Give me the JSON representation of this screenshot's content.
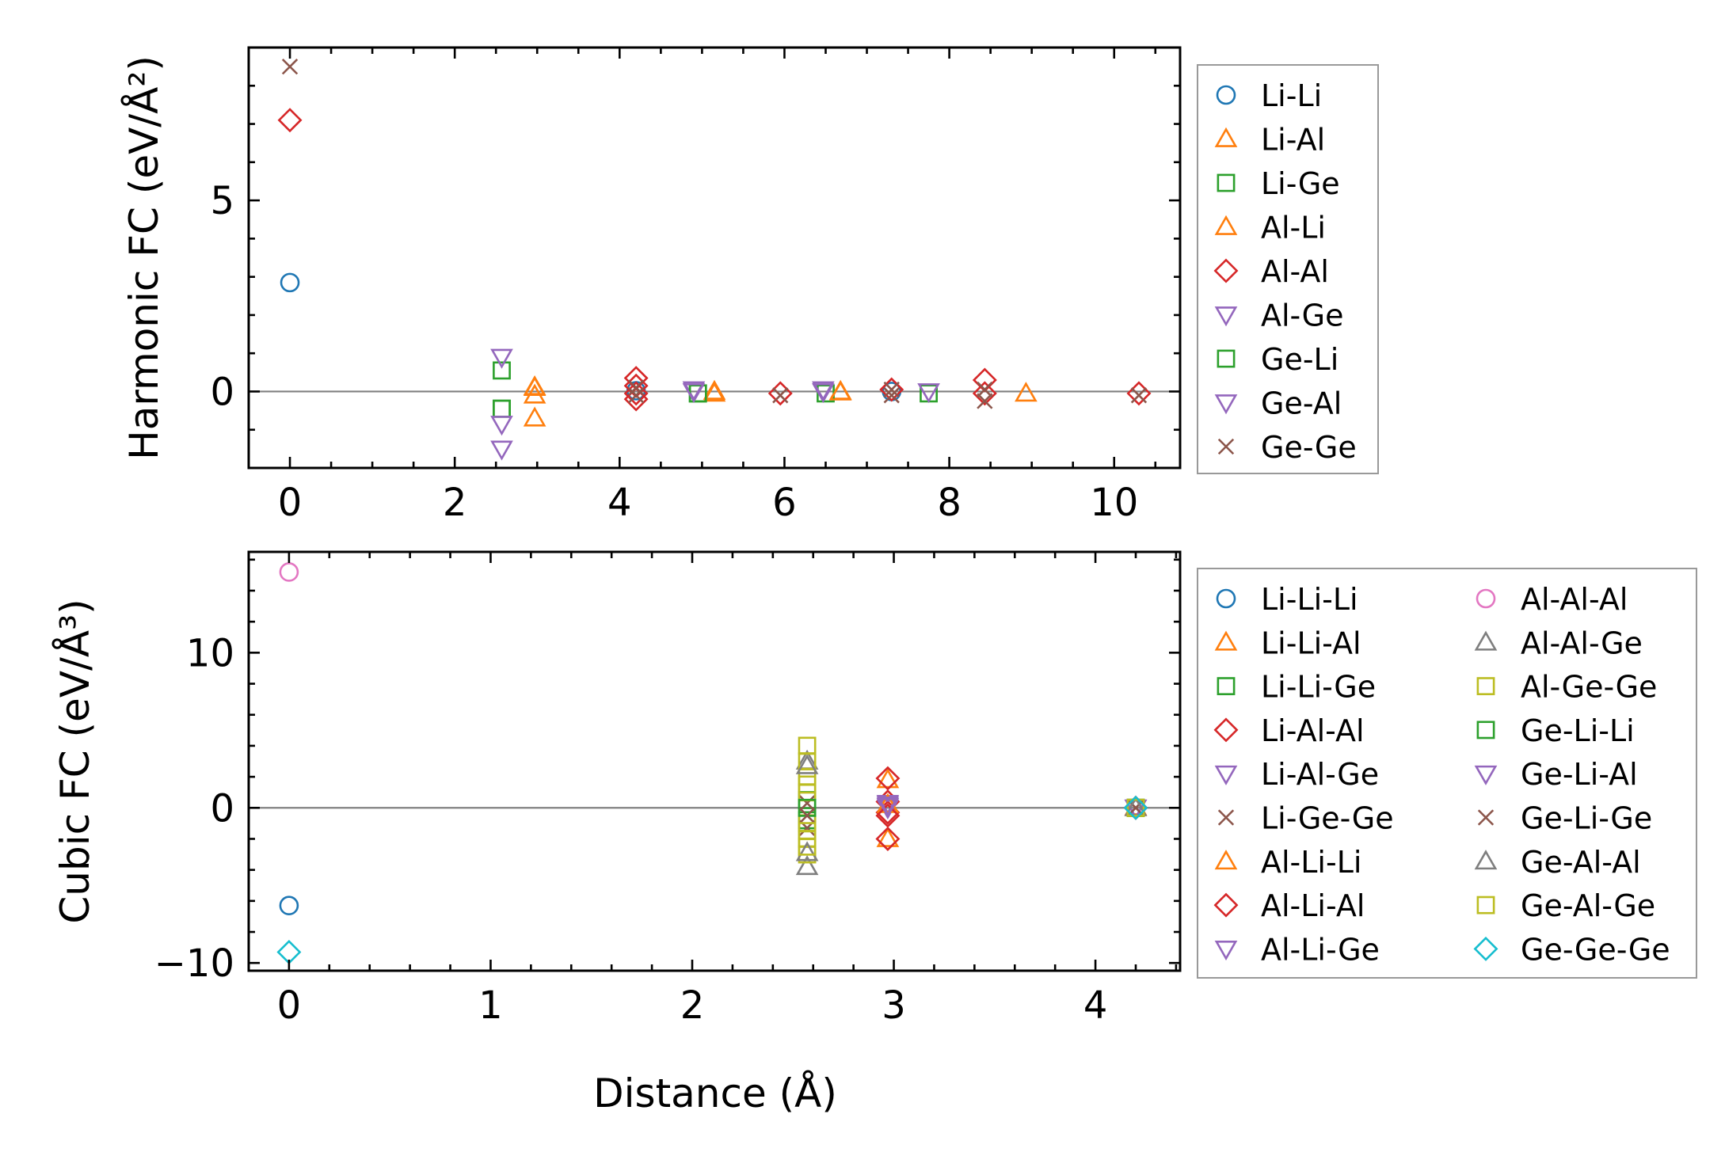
{
  "colors": {
    "blue": "#1f77b4",
    "orange": "#ff7f0e",
    "green": "#2ca02c",
    "red": "#d62728",
    "purple": "#9467bd",
    "brown": "#8c564b",
    "pink": "#e377c2",
    "gray": "#7f7f7f",
    "olive": "#bcbd22",
    "cyan": "#17becf"
  },
  "xlabel": "Distance (Å)",
  "chart_data": [
    {
      "type": "scatter",
      "id": "harmonic",
      "ylabel": "Harmonic FC (eV/Å²)",
      "xlim": [
        -0.5,
        10.8
      ],
      "ylim": [
        -2.0,
        9.0
      ],
      "xticks": [
        0,
        2,
        4,
        6,
        8,
        10
      ],
      "xticklabels": [
        "0",
        "2",
        "4",
        "6",
        "8",
        "10"
      ],
      "yticks": [
        0,
        5
      ],
      "yticklabels": [
        "0",
        "5"
      ],
      "legend_columns": 1,
      "legend_position": "right",
      "series": [
        {
          "name": "Li-Li",
          "marker": "circle",
          "color": "blue",
          "points": [
            [
              0,
              2.85
            ],
            [
              4.2,
              0.02
            ],
            [
              7.3,
              0.0
            ]
          ]
        },
        {
          "name": "Li-Al",
          "marker": "triangle-up",
          "color": "orange",
          "points": [
            [
              2.97,
              0.12
            ],
            [
              2.97,
              -0.1
            ],
            [
              2.97,
              -0.7
            ],
            [
              5.15,
              -0.05
            ],
            [
              6.68,
              0.0
            ],
            [
              8.93,
              -0.05
            ]
          ]
        },
        {
          "name": "Li-Ge",
          "marker": "square",
          "color": "green",
          "points": [
            [
              2.57,
              0.55
            ],
            [
              2.57,
              -0.45
            ],
            [
              4.95,
              -0.05
            ],
            [
              6.5,
              -0.05
            ],
            [
              7.75,
              -0.05
            ]
          ]
        },
        {
          "name": "Al-Li",
          "marker": "triangle-up",
          "color": "orange",
          "points": [
            [
              2.97,
              0.1
            ],
            [
              5.15,
              0.0
            ],
            [
              6.68,
              -0.02
            ]
          ]
        },
        {
          "name": "Al-Al",
          "marker": "diamond",
          "color": "red",
          "points": [
            [
              0,
              7.1
            ],
            [
              4.2,
              0.35
            ],
            [
              4.2,
              0.15
            ],
            [
              4.2,
              -0.05
            ],
            [
              4.2,
              -0.2
            ],
            [
              5.95,
              -0.05
            ],
            [
              7.3,
              0.05
            ],
            [
              8.43,
              0.3
            ],
            [
              8.43,
              -0.05
            ],
            [
              10.3,
              -0.05
            ]
          ]
        },
        {
          "name": "Al-Ge",
          "marker": "triangle-down",
          "color": "purple",
          "points": [
            [
              2.57,
              0.9
            ],
            [
              2.57,
              -1.5
            ],
            [
              4.9,
              0.05
            ],
            [
              6.47,
              0.05
            ],
            [
              7.75,
              0.0
            ]
          ]
        },
        {
          "name": "Ge-Li",
          "marker": "square",
          "color": "green",
          "points": [
            [
              2.57,
              -0.45
            ],
            [
              4.95,
              -0.05
            ]
          ]
        },
        {
          "name": "Ge-Al",
          "marker": "triangle-down",
          "color": "purple",
          "points": [
            [
              2.57,
              -0.85
            ],
            [
              4.9,
              0.0
            ],
            [
              6.47,
              0.0
            ]
          ]
        },
        {
          "name": "Ge-Ge",
          "marker": "x",
          "color": "brown",
          "points": [
            [
              0,
              8.5
            ],
            [
              4.2,
              0.1
            ],
            [
              4.2,
              -0.1
            ],
            [
              5.95,
              -0.1
            ],
            [
              7.3,
              0.05
            ],
            [
              7.3,
              -0.1
            ],
            [
              8.43,
              0.05
            ],
            [
              8.43,
              -0.25
            ],
            [
              10.3,
              -0.1
            ]
          ]
        }
      ]
    },
    {
      "type": "scatter",
      "id": "cubic",
      "ylabel": "Cubic FC (eV/Å³)",
      "xlim": [
        -0.2,
        4.42
      ],
      "ylim": [
        -10.5,
        16.5
      ],
      "xticks": [
        0,
        1,
        2,
        3,
        4
      ],
      "xticklabels": [
        "0",
        "1",
        "2",
        "3",
        "4"
      ],
      "yticks": [
        -10,
        0,
        10
      ],
      "yticklabels": [
        "−10",
        "0",
        "10"
      ],
      "legend_columns": 2,
      "legend_position": "right",
      "series": [
        {
          "name": "Li-Li-Li",
          "marker": "circle",
          "color": "blue",
          "points": [
            [
              0,
              -6.3
            ],
            [
              4.2,
              0.0
            ]
          ]
        },
        {
          "name": "Li-Li-Al",
          "marker": "triangle-up",
          "color": "orange",
          "points": [
            [
              2.97,
              1.8
            ],
            [
              2.97,
              -2.0
            ],
            [
              4.2,
              0.05
            ]
          ]
        },
        {
          "name": "Li-Li-Ge",
          "marker": "square",
          "color": "green",
          "points": [
            [
              2.57,
              0.5
            ],
            [
              2.57,
              -0.8
            ],
            [
              4.2,
              0.0
            ]
          ]
        },
        {
          "name": "Li-Al-Al",
          "marker": "diamond",
          "color": "red",
          "points": [
            [
              2.97,
              1.9
            ],
            [
              2.97,
              0.4
            ],
            [
              2.97,
              -0.3
            ],
            [
              2.97,
              -2.0
            ],
            [
              4.2,
              0.0
            ]
          ]
        },
        {
          "name": "Li-Al-Ge",
          "marker": "triangle-down",
          "color": "purple",
          "points": [
            [
              2.97,
              0.3
            ],
            [
              2.97,
              0.0
            ],
            [
              4.2,
              0.0
            ]
          ]
        },
        {
          "name": "Li-Ge-Ge",
          "marker": "x",
          "color": "brown",
          "points": [
            [
              2.57,
              0.3
            ],
            [
              2.57,
              -1.3
            ],
            [
              4.2,
              0.0
            ]
          ]
        },
        {
          "name": "Al-Li-Li",
          "marker": "triangle-up",
          "color": "orange",
          "points": [
            [
              2.97,
              0.2
            ],
            [
              4.2,
              0.0
            ]
          ]
        },
        {
          "name": "Al-Li-Al",
          "marker": "diamond",
          "color": "red",
          "points": [
            [
              2.97,
              -0.5
            ],
            [
              4.2,
              0.0
            ]
          ]
        },
        {
          "name": "Al-Li-Ge",
          "marker": "triangle-down",
          "color": "purple",
          "points": [
            [
              2.97,
              0.1
            ],
            [
              4.2,
              0.0
            ]
          ]
        },
        {
          "name": "Al-Al-Al",
          "marker": "circle",
          "color": "pink",
          "points": [
            [
              0,
              15.2
            ],
            [
              4.2,
              0.0
            ]
          ]
        },
        {
          "name": "Al-Al-Ge",
          "marker": "triangle-up",
          "color": "gray",
          "points": [
            [
              2.57,
              3.0
            ],
            [
              2.57,
              -3.8
            ],
            [
              4.2,
              0.0
            ]
          ]
        },
        {
          "name": "Al-Ge-Ge",
          "marker": "square",
          "color": "olive",
          "points": [
            [
              2.57,
              4.0
            ],
            [
              2.57,
              3.0
            ],
            [
              2.57,
              2.0
            ],
            [
              2.57,
              1.0
            ],
            [
              2.57,
              -1.0
            ],
            [
              2.57,
              -2.0
            ],
            [
              2.57,
              -3.0
            ],
            [
              4.2,
              0.0
            ]
          ]
        },
        {
          "name": "Ge-Li-Li",
          "marker": "square",
          "color": "green",
          "points": [
            [
              2.57,
              0.0
            ],
            [
              4.2,
              0.0
            ]
          ]
        },
        {
          "name": "Ge-Li-Al",
          "marker": "triangle-down",
          "color": "purple",
          "points": [
            [
              2.97,
              0.2
            ],
            [
              4.2,
              0.0
            ]
          ]
        },
        {
          "name": "Ge-Li-Ge",
          "marker": "x",
          "color": "brown",
          "points": [
            [
              2.57,
              -0.5
            ],
            [
              4.2,
              0.0
            ]
          ]
        },
        {
          "name": "Ge-Al-Al",
          "marker": "triangle-up",
          "color": "gray",
          "points": [
            [
              2.57,
              2.7
            ],
            [
              2.57,
              -2.9
            ],
            [
              4.2,
              0.0
            ]
          ]
        },
        {
          "name": "Ge-Al-Ge",
          "marker": "square",
          "color": "olive",
          "points": [
            [
              2.57,
              1.5
            ],
            [
              2.57,
              -1.5
            ],
            [
              2.57,
              -2.5
            ],
            [
              4.2,
              0.0
            ]
          ]
        },
        {
          "name": "Ge-Ge-Ge",
          "marker": "diamond",
          "color": "cyan",
          "points": [
            [
              0,
              -9.3
            ],
            [
              4.2,
              0.0
            ]
          ]
        }
      ]
    }
  ]
}
